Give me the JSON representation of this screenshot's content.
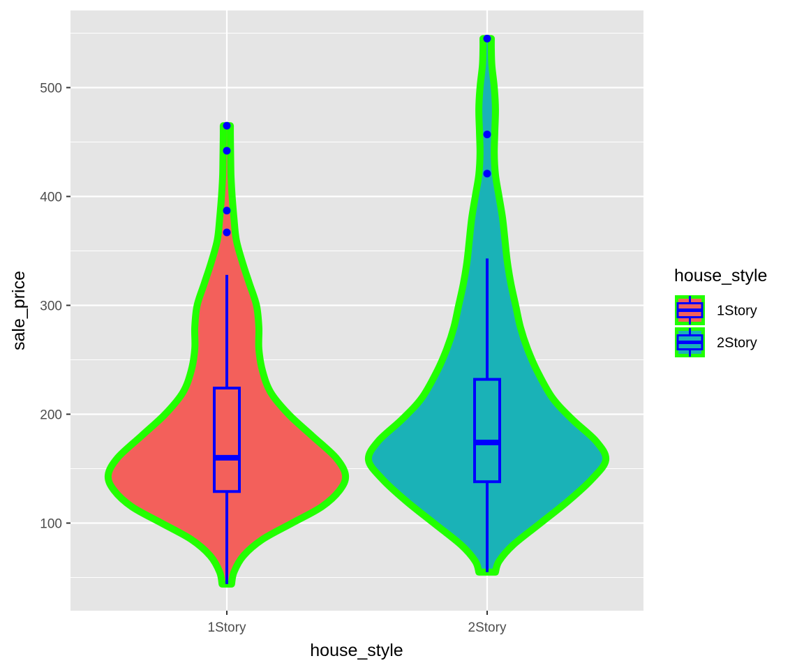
{
  "chart_data": {
    "type": "violin",
    "xlabel": "house_style",
    "ylabel": "sale_price",
    "categories": [
      "1Story",
      "2Story"
    ],
    "ylim": [
      40,
      555
    ],
    "y_ticks": [
      100,
      200,
      300,
      400,
      500
    ],
    "grid": true,
    "legend": {
      "title": "house_style",
      "position": "right",
      "entries": [
        "1Story",
        "2Story"
      ]
    },
    "colors": {
      "panel_background": "#e5e5e5",
      "grid": "#ffffff",
      "violin_outline": "#22ff00",
      "boxplot": "#0000ff",
      "1Story": "#f3605b",
      "2Story": "#1ab2b7"
    },
    "series": [
      {
        "name": "1Story",
        "violin": {
          "min": 44,
          "max": 465,
          "profile": [
            [
              44,
              0.04
            ],
            [
              55,
              0.06
            ],
            [
              70,
              0.14
            ],
            [
              85,
              0.3
            ],
            [
              100,
              0.55
            ],
            [
              115,
              0.8
            ],
            [
              130,
              0.95
            ],
            [
              144,
              1.0
            ],
            [
              160,
              0.92
            ],
            [
              180,
              0.72
            ],
            [
              200,
              0.52
            ],
            [
              220,
              0.37
            ],
            [
              240,
              0.3
            ],
            [
              260,
              0.27
            ],
            [
              280,
              0.27
            ],
            [
              300,
              0.25
            ],
            [
              320,
              0.19
            ],
            [
              340,
              0.13
            ],
            [
              360,
              0.08
            ],
            [
              380,
              0.06
            ],
            [
              400,
              0.045
            ],
            [
              420,
              0.035
            ],
            [
              440,
              0.032
            ],
            [
              455,
              0.03
            ],
            [
              465,
              0.03
            ]
          ]
        },
        "box": {
          "lower_whisker": 44,
          "q1": 129,
          "median": 160,
          "q3": 224,
          "upper_whisker": 328
        },
        "outliers": [
          465,
          442,
          387,
          367
        ]
      },
      {
        "name": "2Story",
        "violin": {
          "min": 55,
          "max": 545,
          "profile": [
            [
              55,
              0.07
            ],
            [
              65,
              0.1
            ],
            [
              80,
              0.22
            ],
            [
              100,
              0.45
            ],
            [
              120,
              0.68
            ],
            [
              140,
              0.88
            ],
            [
              158,
              1.0
            ],
            [
              175,
              0.92
            ],
            [
              195,
              0.72
            ],
            [
              215,
              0.55
            ],
            [
              240,
              0.42
            ],
            [
              260,
              0.34
            ],
            [
              280,
              0.28
            ],
            [
              300,
              0.24
            ],
            [
              320,
              0.2
            ],
            [
              340,
              0.17
            ],
            [
              360,
              0.15
            ],
            [
              380,
              0.13
            ],
            [
              400,
              0.1
            ],
            [
              420,
              0.07
            ],
            [
              440,
              0.06
            ],
            [
              460,
              0.065
            ],
            [
              480,
              0.07
            ],
            [
              500,
              0.06
            ],
            [
              520,
              0.04
            ],
            [
              535,
              0.035
            ],
            [
              545,
              0.035
            ]
          ]
        },
        "box": {
          "lower_whisker": 55,
          "q1": 138,
          "median": 174,
          "q3": 232,
          "upper_whisker": 343
        },
        "outliers": [
          545,
          457,
          421
        ]
      }
    ]
  }
}
